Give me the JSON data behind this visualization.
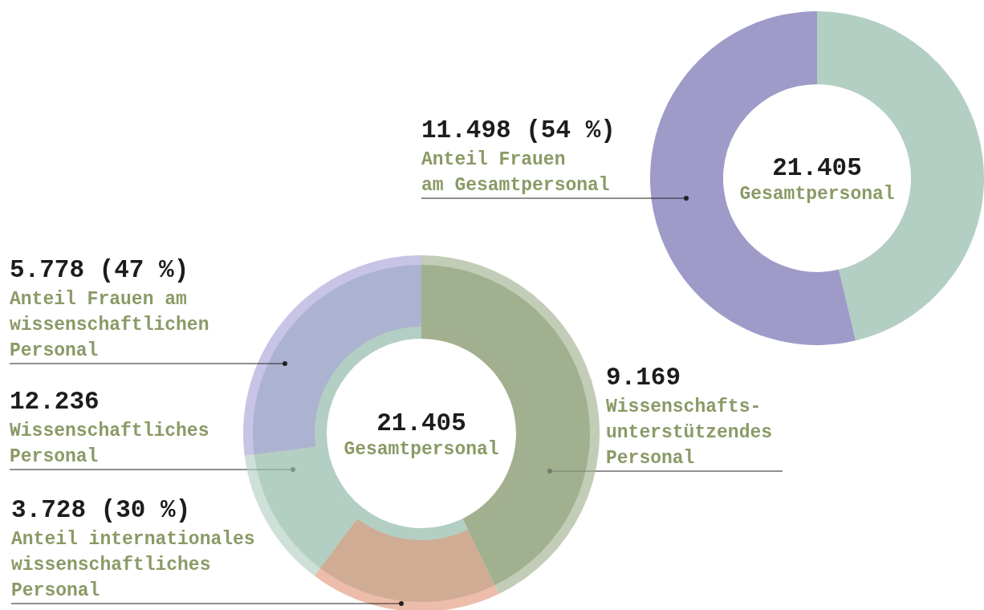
{
  "chart_data": [
    {
      "type": "donut",
      "categories": [
        null,
        "Anteil Frauen\nam Gesamtpersonal"
      ],
      "values": [
        9907,
        11498
      ],
      "colors": [
        "#b3cfc3",
        "#9e9bc9"
      ],
      "value_labels": [
        null,
        "11.498 (54 %)"
      ],
      "annotations": [
        "21.405",
        "Gesamtpersonal"
      ]
    },
    {
      "type": "donut",
      "categories": [
        "Wissenschafts-\nunterstützendes\nPersonal",
        "Wissenschaftliches\nPersonal"
      ],
      "values": [
        9169,
        12236
      ],
      "colors": [
        "#a2b08f",
        "#b3cfc3"
      ],
      "value_labels": [
        "9.169",
        "12.236"
      ],
      "annotations": [
        "21.405",
        "Gesamtpersonal"
      ]
    },
    {
      "type": "donut",
      "categories": [
        null,
        "Anteil internationales\nwissenschaftliches\nPersonal",
        null,
        "Anteil Frauen am\nwissenschaftlichen\nPersonal"
      ],
      "values": [
        9169,
        3728,
        2730,
        5778
      ],
      "colors": [
        "#a2b08f",
        "#e09a7c",
        "#b3cfc3",
        "#a9a4d8"
      ],
      "value_labels": [
        null,
        "3.728 (30 %)",
        null,
        "5.778 (47 %)"
      ]
    }
  ]
}
